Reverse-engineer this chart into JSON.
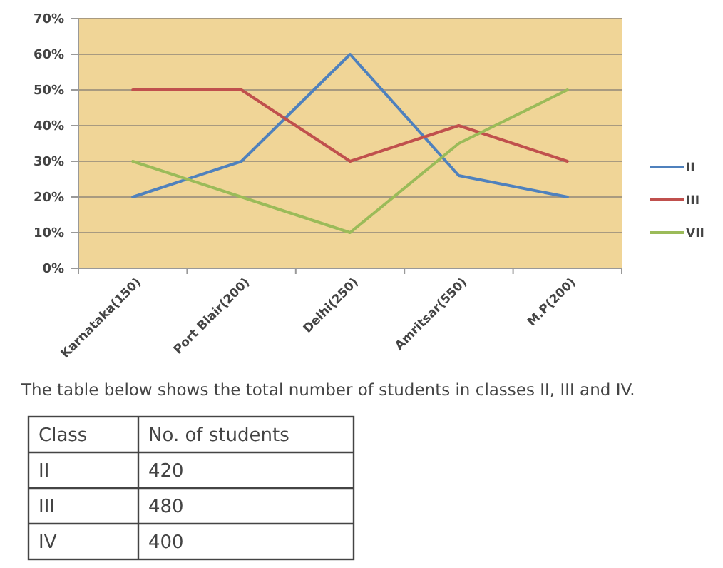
{
  "chart_data": [
    {
      "type": "line",
      "categories": [
        "Karnataka(150)",
        "Port Blair(200)",
        "Delhi(250)",
        "Amritsar(550)",
        "M.P(200)"
      ],
      "series": [
        {
          "name": "II",
          "color": "#4f81bd",
          "values": [
            20,
            30,
            60,
            26,
            20
          ]
        },
        {
          "name": "III",
          "color": "#c0504d",
          "values": [
            50,
            50,
            30,
            40,
            30
          ]
        },
        {
          "name": "VII",
          "color": "#9bbb59",
          "values": [
            30,
            20,
            10,
            35,
            50
          ]
        }
      ],
      "ylim": [
        0,
        70
      ],
      "yticks": [
        {
          "value": 0,
          "label": "0%"
        },
        {
          "value": 10,
          "label": "10%"
        },
        {
          "value": 20,
          "label": "20%"
        },
        {
          "value": 30,
          "label": "30%"
        },
        {
          "value": 40,
          "label": "40%"
        },
        {
          "value": 50,
          "label": "50%"
        },
        {
          "value": 60,
          "label": "60%"
        },
        {
          "value": 70,
          "label": "70%"
        }
      ],
      "grid": "y",
      "legend": "right",
      "marker": "none"
    },
    {
      "type": "other",
      "title": "The table below shows the total number of students in classes II, III and IV.",
      "annotations": [
        "Class",
        "No. of students",
        "II",
        "420",
        "III",
        "480",
        "IV",
        "400"
      ]
    }
  ]
}
